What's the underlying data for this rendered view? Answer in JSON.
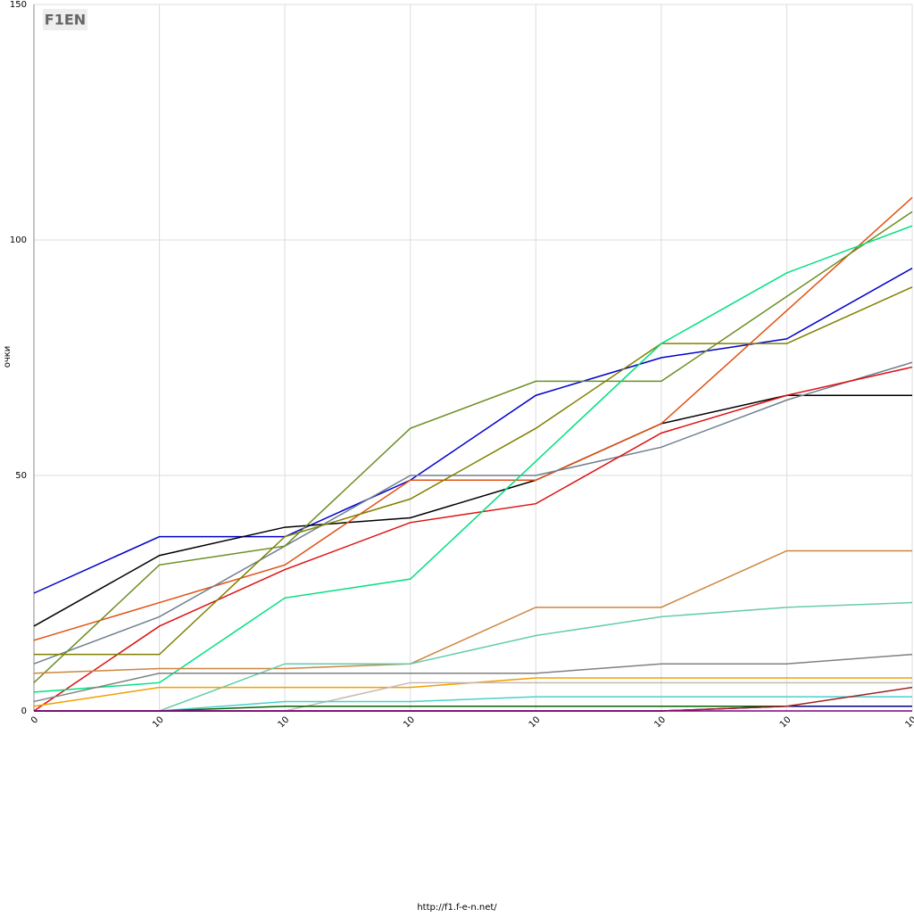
{
  "chart_data": {
    "type": "line",
    "logo": "F1EN",
    "ylabel": "очки",
    "footer": "http://f1.f-e-n.net/",
    "categories": [
      "0",
      "10",
      "10",
      "10",
      "10",
      "10",
      "10",
      "10"
    ],
    "ylim": [
      0,
      150
    ],
    "yticks": [
      0,
      50,
      100,
      150
    ],
    "grid": true,
    "series": [
      {
        "color": "#0000cc",
        "values": [
          25,
          37,
          37,
          49,
          67,
          75,
          79,
          94
        ]
      },
      {
        "color": "#000000",
        "values": [
          18,
          33,
          39,
          41,
          49,
          61,
          67,
          67
        ]
      },
      {
        "color": "#e05010",
        "values": [
          15,
          23,
          31,
          49,
          49,
          61,
          85,
          109
        ]
      },
      {
        "color": "#708090",
        "values": [
          10,
          20,
          35,
          50,
          50,
          56,
          66,
          74
        ]
      },
      {
        "color": "#dd1111",
        "values": [
          0,
          18,
          30,
          40,
          44,
          59,
          67,
          73
        ]
      },
      {
        "color": "#6b8e23",
        "values": [
          6,
          31,
          35,
          60,
          70,
          70,
          88,
          106
        ]
      },
      {
        "color": "#808000",
        "values": [
          12,
          12,
          37,
          45,
          60,
          78,
          78,
          90
        ]
      },
      {
        "color": "#00e080",
        "values": [
          4,
          6,
          24,
          28,
          53,
          78,
          93,
          103
        ]
      },
      {
        "color": "#cd853f",
        "values": [
          8,
          9,
          9,
          10,
          22,
          22,
          34,
          34
        ]
      },
      {
        "color": "#66cdaa",
        "values": [
          null,
          0,
          10,
          10,
          16,
          20,
          22,
          23
        ]
      },
      {
        "color": "#808080",
        "values": [
          2,
          8,
          8,
          8,
          8,
          10,
          10,
          12
        ]
      },
      {
        "color": "#f0a000",
        "values": [
          1,
          5,
          5,
          5,
          7,
          7,
          7,
          7
        ]
      },
      {
        "color": "#c8b8b0",
        "values": [
          null,
          null,
          0,
          6,
          6,
          6,
          6,
          6
        ]
      },
      {
        "color": "#48d1cc",
        "values": [
          null,
          0,
          2,
          2,
          3,
          3,
          3,
          3
        ]
      },
      {
        "color": "#006400",
        "values": [
          0,
          0,
          1,
          1,
          1,
          1,
          1,
          1
        ]
      },
      {
        "color": "#000080",
        "values": [
          0,
          0,
          0,
          0,
          0,
          0,
          1,
          1
        ]
      },
      {
        "color": "#a02020",
        "values": [
          0,
          0,
          0,
          0,
          0,
          0,
          1,
          5
        ]
      },
      {
        "color": "#800080",
        "values": [
          0,
          0,
          0,
          0,
          0,
          0,
          0,
          0
        ]
      }
    ]
  }
}
